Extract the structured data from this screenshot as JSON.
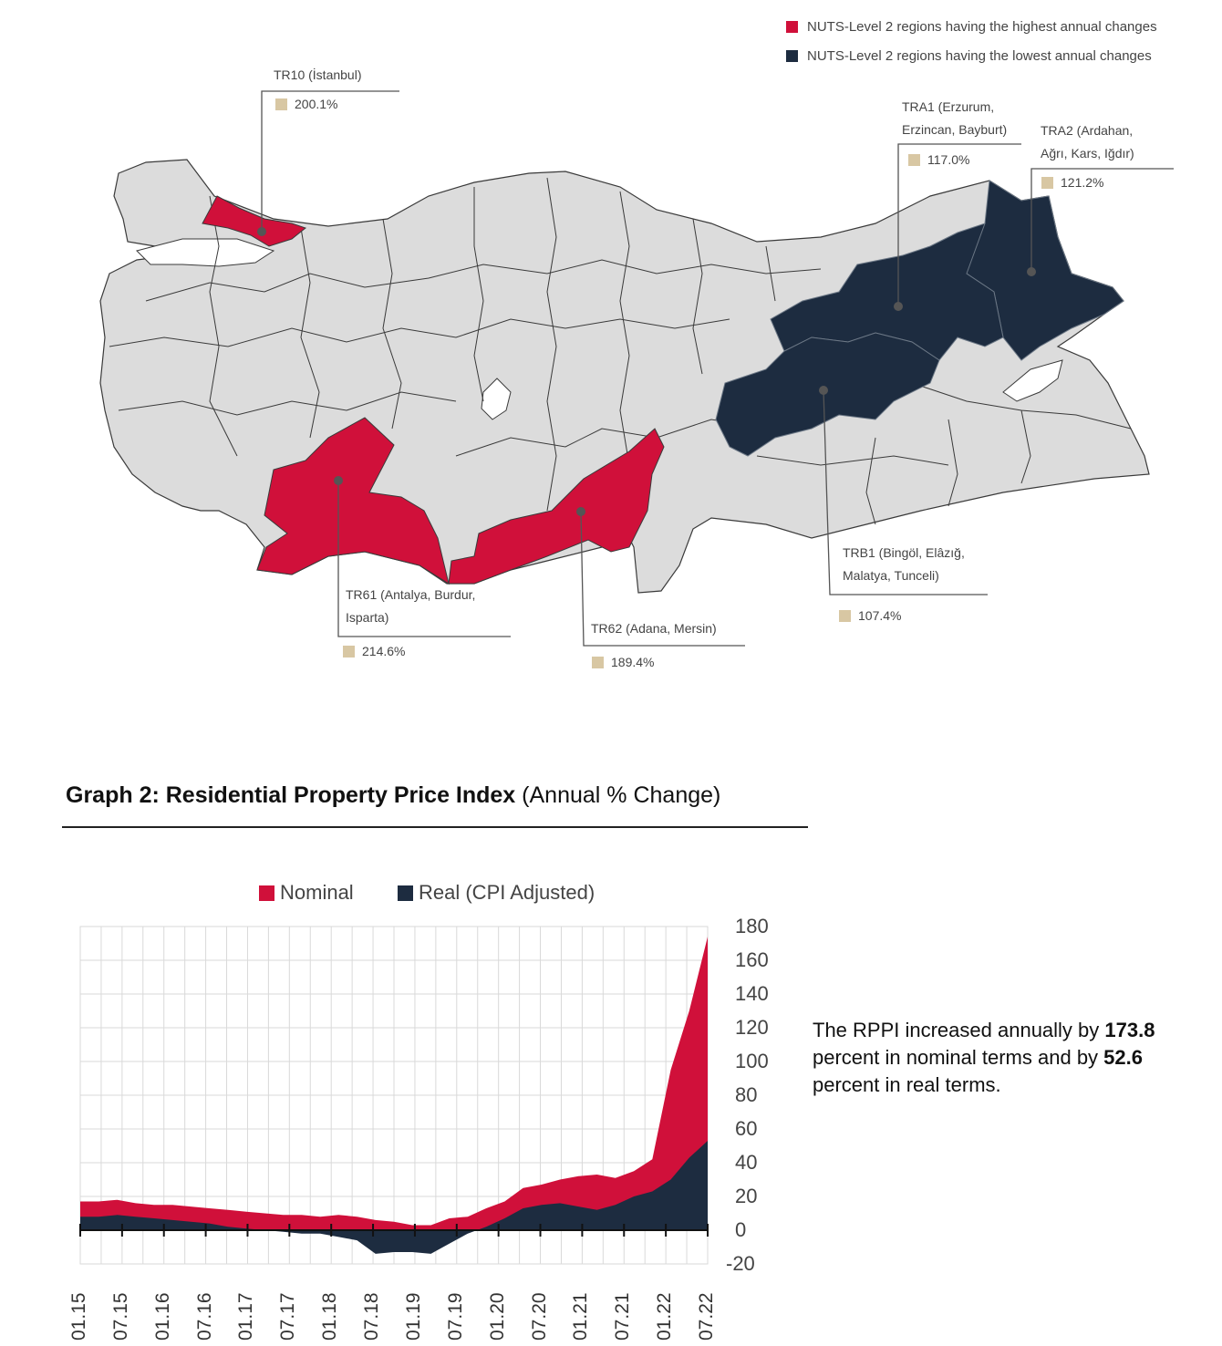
{
  "map": {
    "legend": {
      "highest": "NUTS-Level 2 regions having the highest annual changes",
      "lowest": "NUTS-Level 2 regions having the lowest annual changes"
    },
    "colors": {
      "highest": "#d0103a",
      "lowest": "#1d2c40",
      "other": "#dcdcdc",
      "value_box": "#d8c7a3"
    },
    "callouts": {
      "tr10": {
        "name": "TR10 (İstanbul)",
        "value": "200.1%"
      },
      "tra1": {
        "name_line1": "TRA1 (Erzurum,",
        "name_line2": "Erzincan, Bayburt)",
        "value": "117.0%"
      },
      "tra2": {
        "name_line1": "TRA2 (Ardahan,",
        "name_line2": "Ağrı, Kars, Iğdır)",
        "value": "121.2%"
      },
      "trb1": {
        "name_line1": "TRB1 (Bingöl, Elâzığ,",
        "name_line2": "Malatya, Tunceli)",
        "value": "107.4%"
      },
      "tr61": {
        "name_line1": "TR61 (Antalya, Burdur,",
        "name_line2": "Isparta)",
        "value": "214.6%"
      },
      "tr62": {
        "name": "TR62 (Adana, Mersin)",
        "value": "189.4%"
      }
    }
  },
  "graph": {
    "title_bold": "Graph 2: Residential Property Price Index",
    "title_rest": "(Annual % Change)"
  },
  "chart_data": {
    "type": "area",
    "series": [
      {
        "name": "Nominal",
        "color": "#d0103a",
        "values": [
          17,
          17,
          18,
          16,
          15,
          15,
          14,
          13,
          12,
          11,
          10,
          9,
          9,
          8,
          9,
          8,
          6,
          5,
          3,
          3,
          7,
          8,
          13,
          17,
          25,
          27,
          30,
          32,
          33,
          31,
          35,
          42,
          95,
          130,
          174
        ]
      },
      {
        "name": "Real (CPI Adjusted)",
        "color": "#1d2c40",
        "values": [
          8,
          8,
          9,
          8,
          7,
          6,
          5,
          4,
          2,
          1,
          0,
          -1,
          -2,
          -2,
          -4,
          -6,
          -14,
          -13,
          -13,
          -14,
          -8,
          -2,
          2,
          7,
          13,
          15,
          16,
          14,
          12,
          15,
          20,
          23,
          30,
          43,
          53
        ]
      }
    ],
    "x_ticks": [
      "01.15",
      "07.15",
      "01.16",
      "07.16",
      "01.17",
      "07.17",
      "01.18",
      "07.18",
      "01.19",
      "07.19",
      "01.20",
      "07.20",
      "01.21",
      "07.21",
      "01.22",
      "07.22"
    ],
    "y_ticks": [
      "180",
      "160",
      "140",
      "120",
      "100",
      "80",
      "60",
      "40",
      "20",
      "0",
      "-20"
    ],
    "ylim": [
      -20,
      180
    ],
    "grid": true,
    "legend_position": "top"
  },
  "summary": {
    "part1": "The RPPI increased annually by ",
    "nominal_value": "173.8",
    "part2": " percent in nominal terms and by ",
    "real_value": "52.6",
    "part3": " percent in real terms."
  }
}
